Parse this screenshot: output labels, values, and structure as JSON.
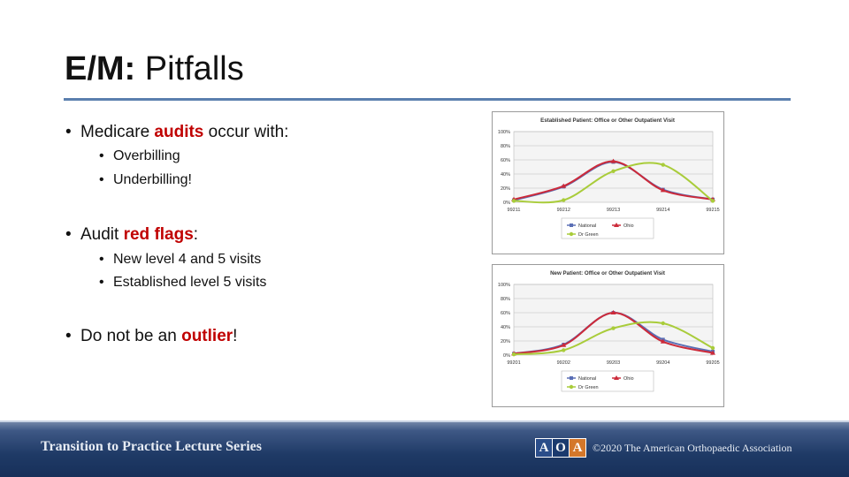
{
  "slide": {
    "title_bold": "E/M:",
    "title_rest": " Pitfalls"
  },
  "bullets": {
    "b1_pre": "Medicare ",
    "b1_hl": "audits",
    "b1_post": " occur with:",
    "b1_sub": [
      "Overbilling",
      "Underbilling!"
    ],
    "b2_pre": "Audit ",
    "b2_hl": "red flags",
    "b2_post": ":",
    "b2_sub": [
      "New level 4 and 5 visits",
      "Established level 5 visits"
    ],
    "b3_pre": "Do not be an ",
    "b3_hl": "outlier",
    "b3_post": "!"
  },
  "footer": {
    "series": "Transition to Practice Lecture Series",
    "logo_letters": [
      "A",
      "O",
      "A"
    ],
    "copyright": "©2020 The American Orthopaedic Association"
  },
  "colors": {
    "highlight": "#c00000",
    "rule": "#5b7fae",
    "national": "#5a6fb5",
    "ohio": "#cc2a3a",
    "dr_green": "#a9cc3a"
  },
  "chart_data": [
    {
      "type": "line",
      "title": "Established Patient: Office or Other Outpatient Visit",
      "categories": [
        "99211",
        "99212",
        "99213",
        "99214",
        "99215"
      ],
      "y_ticks": [
        "0%",
        "20%",
        "40%",
        "60%",
        "80%",
        "100%"
      ],
      "ylim": [
        0,
        100
      ],
      "grid": true,
      "legend": "bottom",
      "series": [
        {
          "name": "National",
          "color": "#5a6fb5",
          "marker": "square",
          "values": [
            3,
            22,
            57,
            18,
            4
          ]
        },
        {
          "name": "Ohio",
          "color": "#cc2a3a",
          "marker": "triangle",
          "values": [
            4,
            23,
            58,
            17,
            4
          ]
        },
        {
          "name": "Dr Green",
          "color": "#a9cc3a",
          "marker": "circle",
          "values": [
            2,
            3,
            44,
            53,
            2
          ]
        }
      ]
    },
    {
      "type": "line",
      "title": "New Patient: Office or Other Outpatient Visit",
      "categories": [
        "99201",
        "99202",
        "99203",
        "99204",
        "99205"
      ],
      "y_ticks": [
        "0%",
        "20%",
        "40%",
        "60%",
        "80%",
        "100%"
      ],
      "ylim": [
        0,
        100
      ],
      "grid": true,
      "legend": "bottom",
      "series": [
        {
          "name": "National",
          "color": "#5a6fb5",
          "marker": "square",
          "values": [
            2,
            15,
            60,
            22,
            5
          ]
        },
        {
          "name": "Ohio",
          "color": "#cc2a3a",
          "marker": "triangle",
          "values": [
            2,
            14,
            60,
            19,
            3
          ]
        },
        {
          "name": "Dr Green",
          "color": "#a9cc3a",
          "marker": "circle",
          "values": [
            1,
            7,
            38,
            45,
            10
          ]
        }
      ]
    }
  ]
}
